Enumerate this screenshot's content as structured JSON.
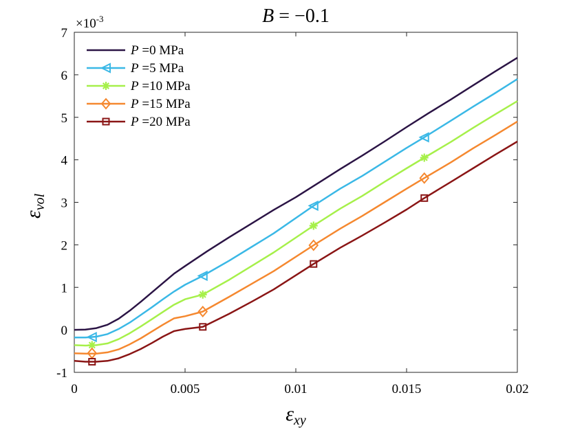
{
  "chart_data": {
    "type": "line",
    "title_main": "B",
    "title_rest": " = −0.1",
    "xlabel_base": "ε",
    "xlabel_sub": "xy",
    "ylabel_base": "ε",
    "ylabel_sub": "vol",
    "y_exponent_base": "×10",
    "y_exponent_power": "-3",
    "xlim": [
      0,
      0.02
    ],
    "ylim": [
      -1,
      7
    ],
    "x_ticks": [
      0,
      0.005,
      0.01,
      0.015,
      0.02
    ],
    "x_tick_labels": [
      "0",
      "0.005",
      "0.01",
      "0.015",
      "0.02"
    ],
    "y_ticks": [
      -1,
      0,
      1,
      2,
      3,
      4,
      5,
      6,
      7
    ],
    "y_tick_labels": [
      "-1",
      "0",
      "1",
      "2",
      "3",
      "4",
      "5",
      "6",
      "7"
    ],
    "legend_position": "top-left",
    "series": [
      {
        "name": "P =0 MPa",
        "legend_var": "P",
        "legend_rest": " =0 MPa",
        "color": "#2b1445",
        "marker": "none",
        "x": [
          0,
          0.0005,
          0.001,
          0.0015,
          0.002,
          0.0025,
          0.003,
          0.0035,
          0.004,
          0.0045,
          0.005,
          0.006,
          0.007,
          0.008,
          0.009,
          0.01,
          0.011,
          0.012,
          0.013,
          0.014,
          0.015,
          0.016,
          0.017,
          0.018,
          0.019,
          0.02
        ],
        "values": [
          0,
          0.005,
          0.04,
          0.12,
          0.26,
          0.45,
          0.66,
          0.88,
          1.1,
          1.32,
          1.5,
          1.85,
          2.18,
          2.5,
          2.82,
          3.12,
          3.45,
          3.78,
          4.1,
          4.43,
          4.77,
          5.1,
          5.42,
          5.75,
          6.08,
          6.4
        ],
        "marker_x": [],
        "marker_y": []
      },
      {
        "name": "P =5 MPa",
        "legend_var": "P",
        "legend_rest": " =5 MPa",
        "color": "#3ab8e6",
        "marker": "triangle-left",
        "x": [
          0,
          0.0005,
          0.001,
          0.0015,
          0.002,
          0.0025,
          0.003,
          0.0035,
          0.004,
          0.0045,
          0.005,
          0.0058,
          0.007,
          0.008,
          0.009,
          0.0108,
          0.012,
          0.013,
          0.014,
          0.015,
          0.0158,
          0.017,
          0.018,
          0.019,
          0.02
        ],
        "values": [
          -0.18,
          -0.18,
          -0.16,
          -0.1,
          0.02,
          0.17,
          0.35,
          0.53,
          0.72,
          0.9,
          1.06,
          1.27,
          1.63,
          1.95,
          2.27,
          2.92,
          3.32,
          3.62,
          3.95,
          4.28,
          4.53,
          4.92,
          5.25,
          5.57,
          5.9
        ],
        "marker_x": [
          0.0008,
          0.0058,
          0.0108,
          0.0158
        ],
        "marker_y": [
          -0.17,
          1.27,
          2.92,
          4.53
        ]
      },
      {
        "name": "P =10 MPa",
        "legend_var": "P",
        "legend_rest": " =10 MPa",
        "color": "#a6f04a",
        "marker": "asterisk",
        "x": [
          0,
          0.0005,
          0.001,
          0.0015,
          0.002,
          0.0025,
          0.003,
          0.0035,
          0.004,
          0.0045,
          0.005,
          0.0058,
          0.007,
          0.008,
          0.009,
          0.0108,
          0.012,
          0.013,
          0.014,
          0.015,
          0.0158,
          0.017,
          0.018,
          0.019,
          0.02
        ],
        "values": [
          -0.36,
          -0.37,
          -0.36,
          -0.32,
          -0.22,
          -0.08,
          0.08,
          0.25,
          0.42,
          0.59,
          0.72,
          0.83,
          1.18,
          1.5,
          1.82,
          2.45,
          2.85,
          3.15,
          3.48,
          3.8,
          4.05,
          4.42,
          4.75,
          5.07,
          5.38
        ],
        "marker_x": [
          0.0008,
          0.0058,
          0.0108,
          0.0158
        ],
        "marker_y": [
          -0.36,
          0.83,
          2.45,
          4.05
        ]
      },
      {
        "name": "P =15 MPa",
        "legend_var": "P",
        "legend_rest": " =15 MPa",
        "color": "#f5882f",
        "marker": "diamond",
        "x": [
          0,
          0.0005,
          0.001,
          0.0015,
          0.002,
          0.0025,
          0.003,
          0.0035,
          0.004,
          0.0045,
          0.005,
          0.0058,
          0.007,
          0.008,
          0.009,
          0.0108,
          0.012,
          0.013,
          0.014,
          0.015,
          0.0158,
          0.017,
          0.018,
          0.019,
          0.02
        ],
        "values": [
          -0.55,
          -0.56,
          -0.56,
          -0.53,
          -0.46,
          -0.34,
          -0.2,
          -0.04,
          0.12,
          0.27,
          0.32,
          0.43,
          0.78,
          1.08,
          1.38,
          1.99,
          2.38,
          2.68,
          3.0,
          3.32,
          3.57,
          3.94,
          4.27,
          4.58,
          4.9
        ],
        "marker_x": [
          0.0008,
          0.0058,
          0.0108,
          0.0158
        ],
        "marker_y": [
          -0.55,
          0.43,
          1.99,
          3.57
        ]
      },
      {
        "name": "P =20 MPa",
        "legend_var": "P",
        "legend_rest": " =20 MPa",
        "color": "#8a1515",
        "marker": "square",
        "x": [
          0,
          0.0005,
          0.001,
          0.0015,
          0.002,
          0.0025,
          0.003,
          0.0035,
          0.004,
          0.0045,
          0.005,
          0.0058,
          0.007,
          0.008,
          0.009,
          0.0108,
          0.012,
          0.013,
          0.014,
          0.015,
          0.0158,
          0.017,
          0.018,
          0.019,
          0.02
        ],
        "values": [
          -0.73,
          -0.75,
          -0.75,
          -0.73,
          -0.67,
          -0.57,
          -0.45,
          -0.31,
          -0.16,
          -0.03,
          0.02,
          0.07,
          0.38,
          0.66,
          0.95,
          1.55,
          1.93,
          2.22,
          2.52,
          2.83,
          3.1,
          3.48,
          3.8,
          4.12,
          4.43
        ],
        "marker_x": [
          0.0008,
          0.0058,
          0.0108,
          0.0158
        ],
        "marker_y": [
          -0.75,
          0.07,
          1.55,
          3.1
        ]
      }
    ]
  }
}
